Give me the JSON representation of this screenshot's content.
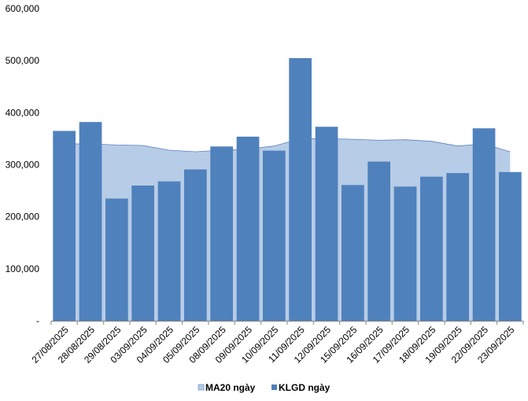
{
  "chart_data": {
    "type": "bar",
    "categories": [
      "27/08/2025",
      "28/08/2025",
      "29/08/2025",
      "03/09/2025",
      "04/09/2025",
      "05/09/2025",
      "08/09/2025",
      "09/09/2025",
      "10/09/2025",
      "11/09/2025",
      "12/09/2025",
      "15/09/2025",
      "16/09/2025",
      "17/09/2025",
      "18/09/2025",
      "19/09/2025",
      "22/09/2025",
      "23/09/2025"
    ],
    "series": [
      {
        "name": "MA20 ngày",
        "render": "area",
        "color": "#b7cce6",
        "line_color": "#5a7fc4",
        "values": [
          340000,
          340000,
          338000,
          337000,
          328000,
          325000,
          328000,
          330000,
          336000,
          350000,
          350000,
          349000,
          347000,
          348000,
          345000,
          336000,
          340000,
          325000
        ]
      },
      {
        "name": "KLGD ngày",
        "render": "bar",
        "color": "#4f81bd",
        "values": [
          365000,
          382000,
          235000,
          260000,
          268000,
          291000,
          335000,
          354000,
          327000,
          505000,
          373000,
          261000,
          306000,
          258000,
          277000,
          284000,
          370000,
          286000
        ]
      }
    ],
    "y_ticks": [
      "-",
      "100,000",
      "200,000",
      "300,000",
      "400,000",
      "500,000",
      "600,000"
    ],
    "ylim": [
      0,
      600000
    ],
    "grid": false,
    "legend_position": "bottom"
  }
}
